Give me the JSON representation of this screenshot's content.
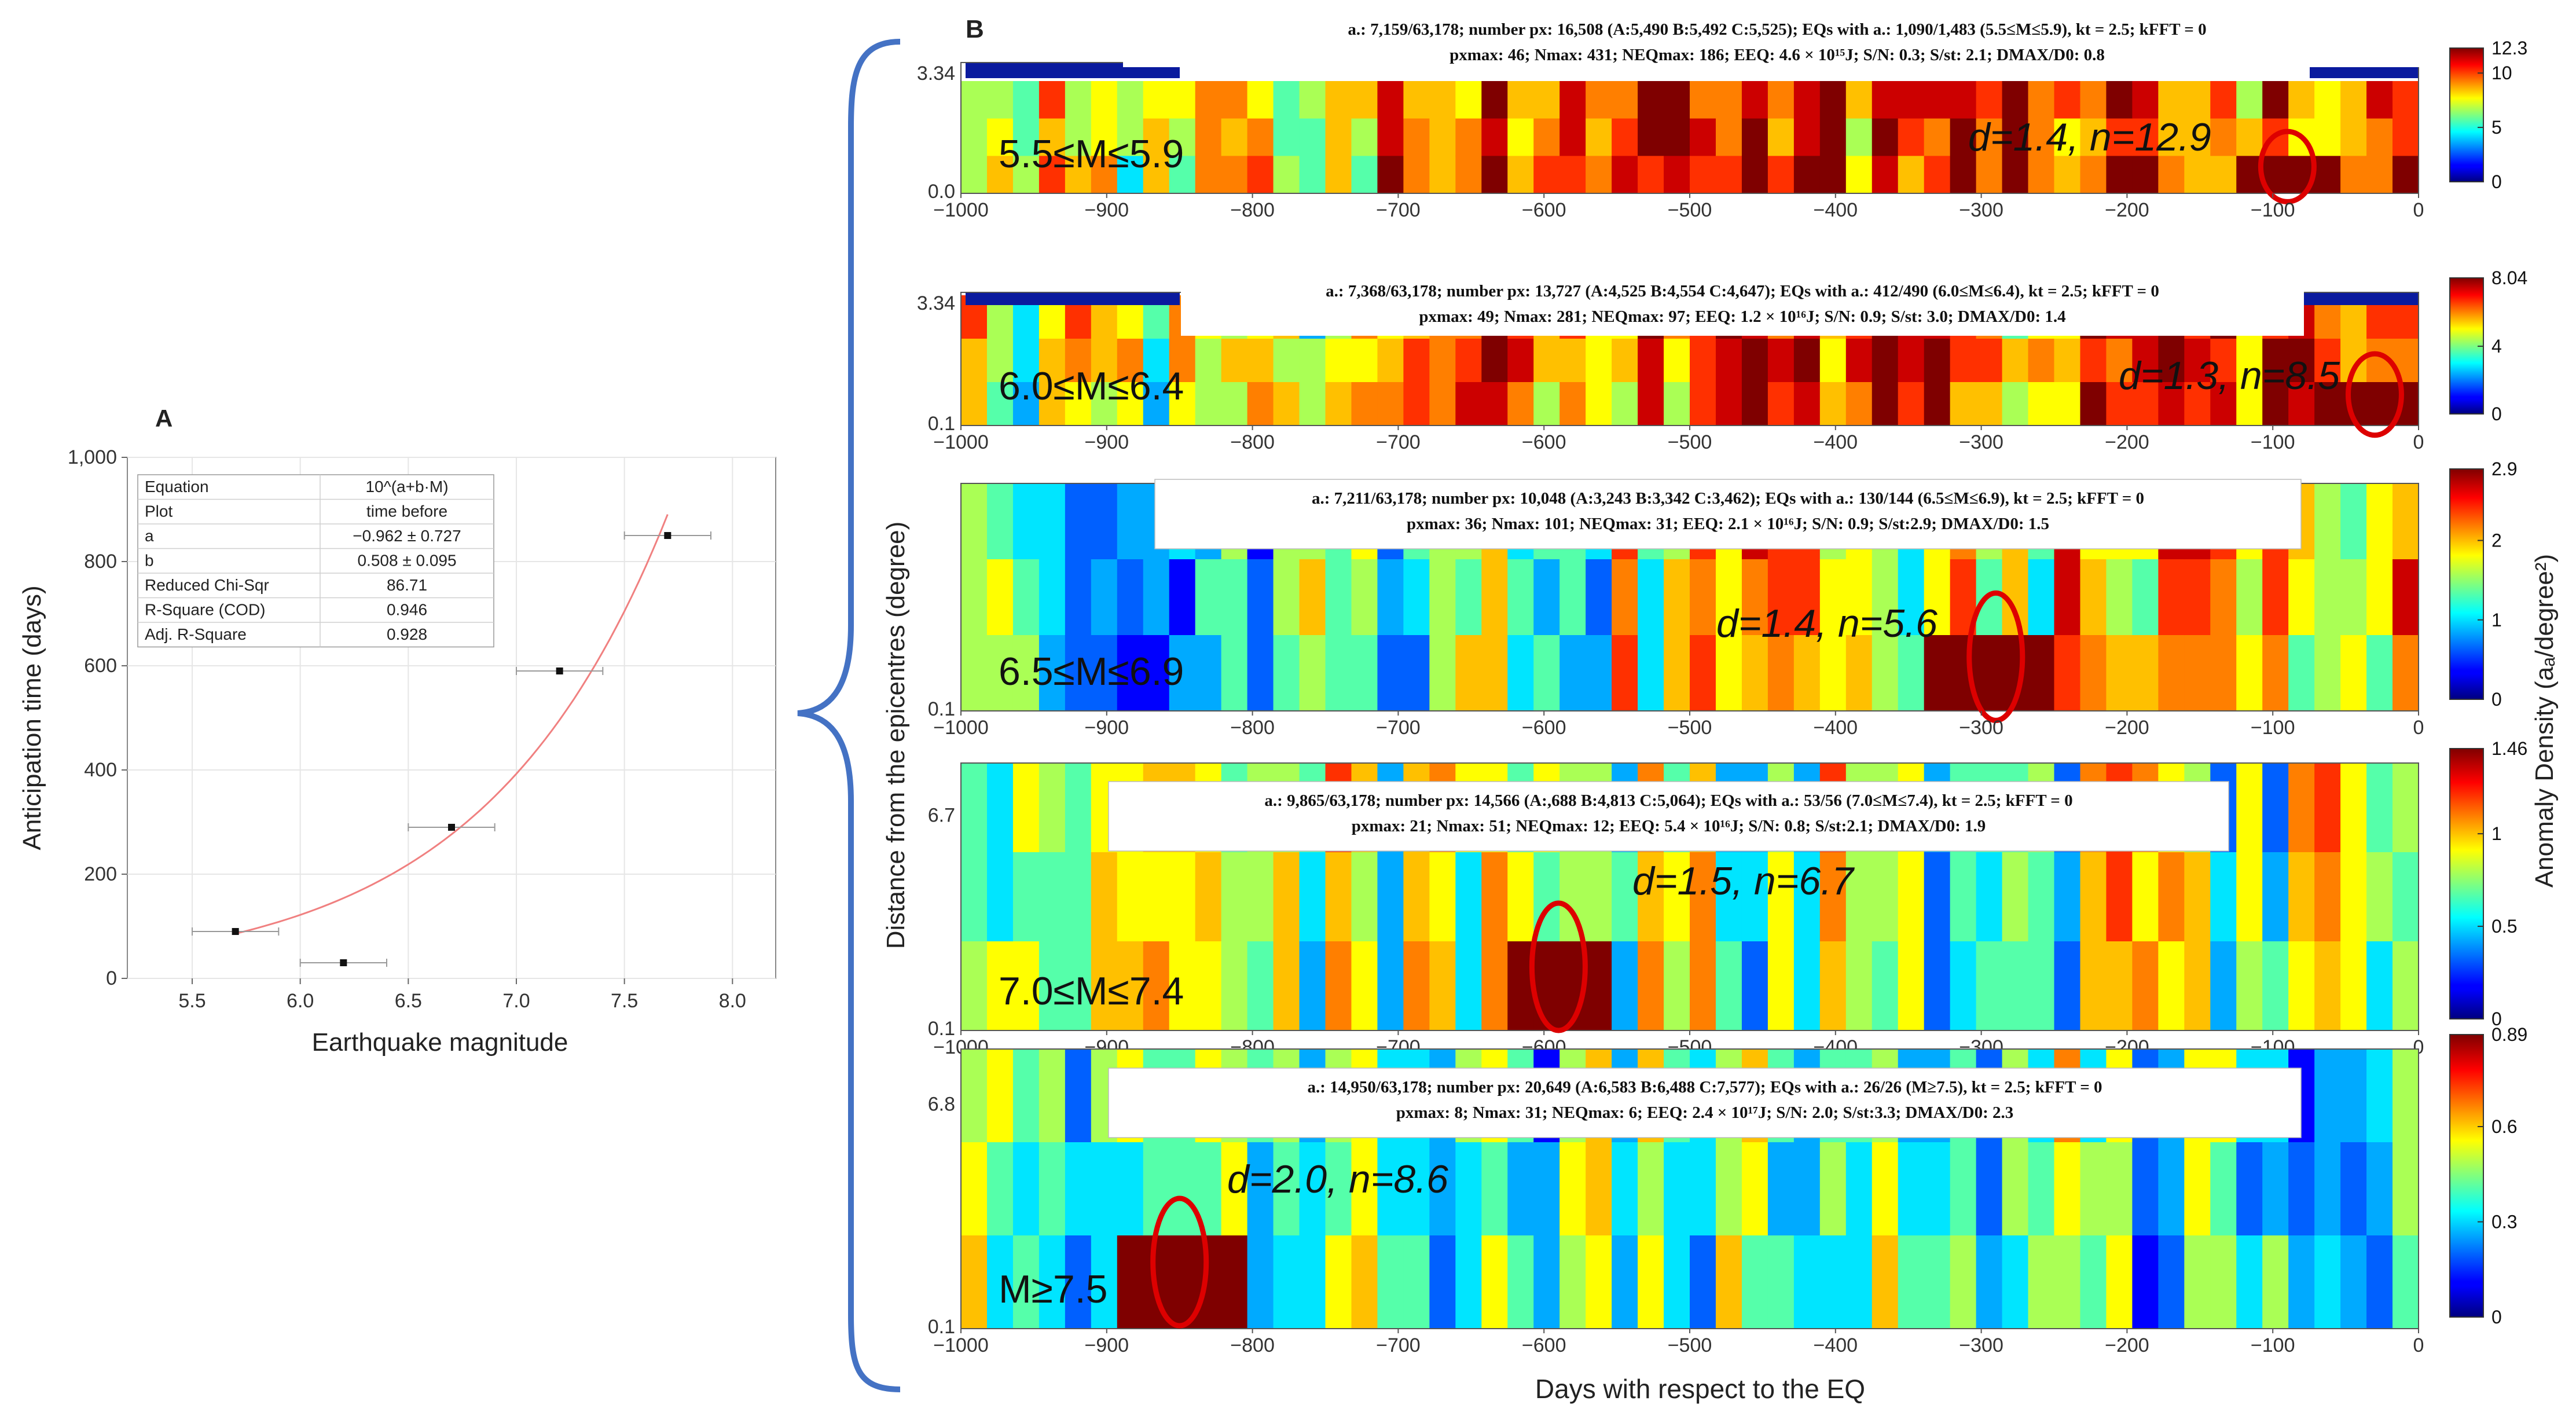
{
  "chart_data": [
    {
      "type": "scatter",
      "panel": "A",
      "title": "",
      "xlabel": "Earthquake magnitude",
      "ylabel": "Anticipation time (days)",
      "xlim": [
        5.2,
        8.2
      ],
      "ylim": [
        0,
        1000
      ],
      "xticks": [
        "5.5",
        "6.0",
        "6.5",
        "7.0",
        "7.5",
        "8.0"
      ],
      "yticks": [
        "0",
        "200",
        "400",
        "600",
        "800",
        "1,000"
      ],
      "points": [
        {
          "x": 5.7,
          "y": 90,
          "xerr": 0.2
        },
        {
          "x": 6.2,
          "y": 30,
          "xerr": 0.2
        },
        {
          "x": 6.7,
          "y": 290,
          "xerr": 0.2
        },
        {
          "x": 7.2,
          "y": 590,
          "xerr": 0.2
        },
        {
          "x": 7.7,
          "y": 850,
          "xerr": 0.2
        }
      ],
      "fit": {
        "a": -0.962,
        "b": 0.508,
        "x_range": [
          5.7,
          7.7
        ]
      },
      "table": [
        [
          "Equation",
          "10^(a+b·M)"
        ],
        [
          "Plot",
          "time before"
        ],
        [
          "a",
          "−0.962 ± 0.727"
        ],
        [
          "b",
          "0.508 ± 0.095"
        ],
        [
          "Reduced Chi-Sqr",
          "86.71"
        ],
        [
          "R-Square (COD)",
          "0.946"
        ],
        [
          "Adj. R-Square",
          "0.928"
        ]
      ]
    },
    {
      "type": "heatmap",
      "panel": "B",
      "xlabel": "Days with respect to the EQ",
      "ylabel": "Distance from the epicentres (degree)",
      "colorbar_label": "Anomaly Density (aₐ/degree²)",
      "xlim": [
        -1000,
        0
      ],
      "xticks": [
        "−1000",
        "−900",
        "−800",
        "−700",
        "−600",
        "−500",
        "−400",
        "−300",
        "−200",
        "−100",
        "0"
      ],
      "panels": [
        {
          "range_label": "5.5≤M≤5.9",
          "y_top": "3.34",
          "y_mid": null,
          "y_bottom": "0.0",
          "cbar_ticks": [
            "12.3",
            "10",
            "5",
            "0"
          ],
          "cbar_max": 12.3,
          "line1": "a.: 7,159/63,178; number px: 16,508 (A:5,490 B:5,492 C:5,525); EQs with a.: 1,090/1,483 (5.5≤M≤5.9), kt = 2.5; kFFT = 0",
          "line2": "pxmax: 46; Nmax: 431; NEQmax: 186; EEQ: 4.6 × 10¹⁵J; S/N: 0.3; S/st: 2.1; DMAX/D0: 0.8",
          "annot": "d=1.4, n=12.9",
          "peak_day": -90
        },
        {
          "range_label": "6.0≤M≤6.4",
          "y_top": "3.34",
          "y_mid": null,
          "y_bottom": "0.1",
          "cbar_ticks": [
            "8.04",
            "4",
            "0"
          ],
          "cbar_max": 8.04,
          "line1": "a.: 7,368/63,178; number px: 13,727 (A:4,525 B:4,554 C:4,647); EQs with a.: 412/490 (6.0≤M≤6.4), kt = 2.5; kFFT = 0",
          "line2": "pxmax: 49; Nmax: 281; NEQmax: 97; EEQ: 1.2 × 10¹⁶J; S/N: 0.9; S/st: 3.0; DMAX/D0: 1.4",
          "annot": "d=1.3, n=8.5",
          "peak_day": -30
        },
        {
          "range_label": "6.5≤M≤6.9",
          "y_top": null,
          "y_mid": null,
          "y_bottom": "0.1",
          "cbar_ticks": [
            "2.9",
            "2",
            "1",
            "0"
          ],
          "cbar_max": 2.9,
          "line1": "a.: 7,211/63,178; number px: 10,048 (A:3,243 B:3,342 C:3,462); EQs with a.: 130/144 (6.5≤M≤6.9), kt = 2.5; kFFT = 0",
          "line2": "pxmax: 36; Nmax: 101; NEQmax: 31; EEQ: 2.1 × 10¹⁶J; S/N: 0.9; S/st:2.9; DMAX/D0: 1.5",
          "annot": "d=1.4, n=5.6",
          "peak_day": -290
        },
        {
          "range_label": "7.0≤M≤7.4",
          "y_top": null,
          "y_mid": "6.7",
          "y_bottom": "0.1",
          "cbar_ticks": [
            "1.46",
            "1",
            "0.5",
            "0"
          ],
          "cbar_max": 1.46,
          "line1": "a.: 9,865/63,178; number px: 14,566 (A:,688 B:4,813 C:5,064); EQs with a.: 53/56 (7.0≤M≤7.4), kt = 2.5; kFFT = 0",
          "line2": "pxmax: 21; Nmax: 51; NEQmax: 12; EEQ: 5.4 × 10¹⁶J; S/N: 0.8; S/st:2.1; DMAX/D0: 1.9",
          "annot": "d=1.5, n=6.7",
          "peak_day": -590
        },
        {
          "range_label": "M≥7.5",
          "y_top": null,
          "y_mid": "6.8",
          "y_bottom": "0.1",
          "cbar_ticks": [
            "0.89",
            "0.6",
            "0.3",
            "0"
          ],
          "cbar_max": 0.89,
          "line1": "a.: 14,950/63,178; number px: 20,649 (A:6,583 B:6,488 C:7,577); EQs with a.: 26/26 (M≥7.5), kt = 2.5; kFFT = 0",
          "line2": "pxmax: 8; Nmax: 31; NEQmax: 6; EEQ: 2.4 × 10¹⁷J; S/N: 2.0; S/st:3.3; DMAX/D0: 2.3",
          "annot": "d=2.0, n=8.6",
          "peak_day": -850
        }
      ]
    }
  ],
  "labels": {
    "panel_a": "A",
    "panel_b": "B"
  }
}
